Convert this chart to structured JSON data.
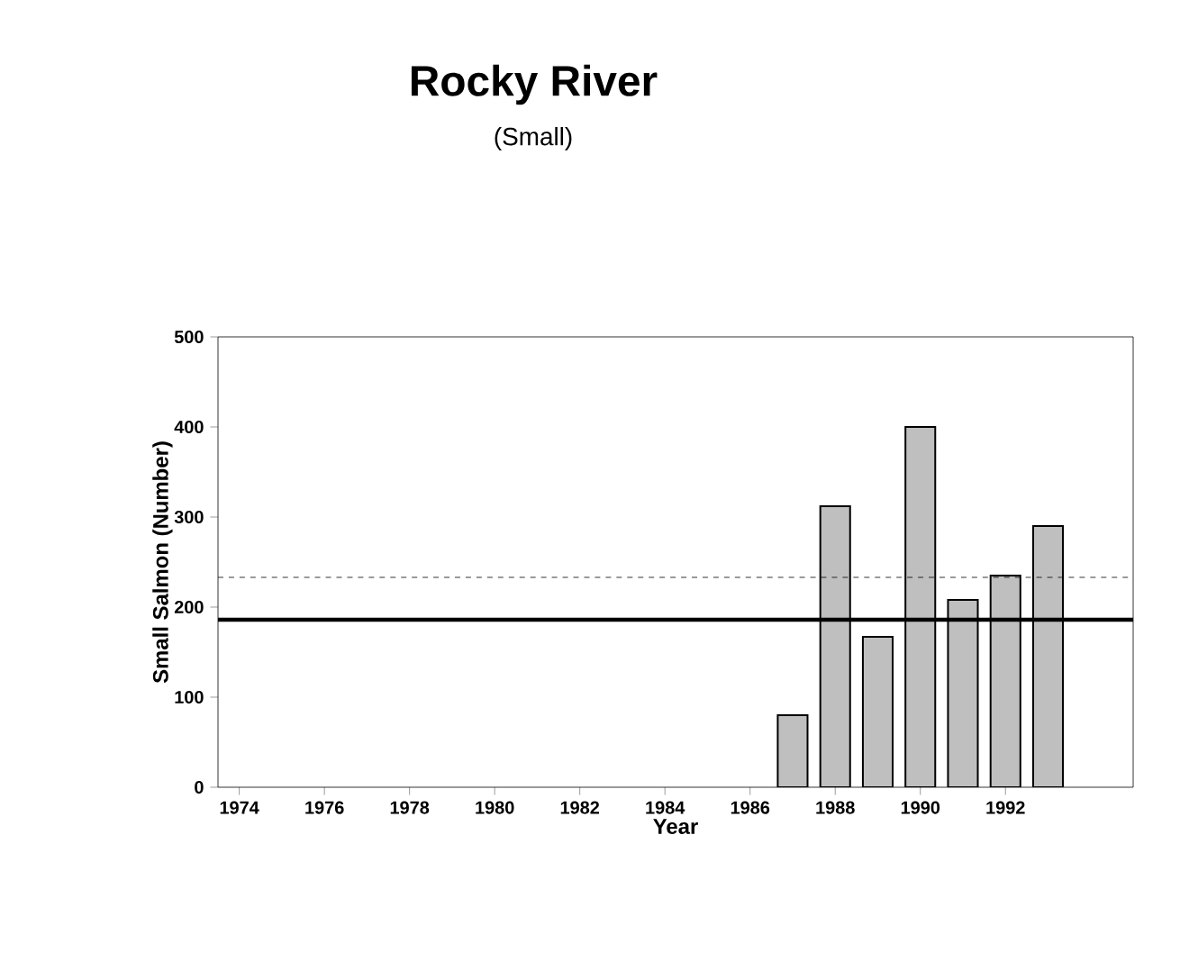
{
  "chart_data": {
    "type": "bar",
    "title": "Rocky River",
    "subtitle": "(Small)",
    "xlabel": "Year",
    "ylabel": "Small Salmon (Number)",
    "x": [
      1987,
      1988,
      1989,
      1990,
      1991,
      1992,
      1993
    ],
    "values": [
      80,
      312,
      167,
      400,
      208,
      235,
      290
    ],
    "color": "#bfbfbf",
    "xlim": [
      1973.5,
      1995
    ],
    "xticks": [
      1974,
      1976,
      1978,
      1980,
      1982,
      1984,
      1986,
      1988,
      1990,
      1992
    ],
    "ylim": [
      0,
      500
    ],
    "yticks": [
      0,
      100,
      200,
      300,
      400,
      500
    ],
    "ref_lines": [
      {
        "axis": "y",
        "value": 233,
        "line_style": "dashed"
      },
      {
        "axis": "y",
        "value": 186,
        "line_style": "solid"
      }
    ],
    "grid": false
  }
}
